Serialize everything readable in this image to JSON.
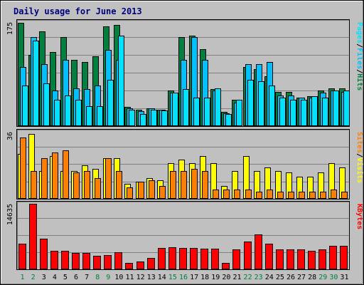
{
  "title": "Daily usage for June 2013",
  "colors": {
    "hits": "#008040",
    "files": "#00c0ff",
    "pages": "#00e0ff",
    "visits": "#ffff00",
    "sites": "#ff8000",
    "kbytes": "#ff0000",
    "weekend": "#008040",
    "weekday": "#000000",
    "background": "#c0c0c0",
    "plot": "#c0c0c0",
    "grid": "#808080",
    "frame": "#000000"
  },
  "panels": {
    "top": {
      "max_label": "175",
      "legend": [
        "Pages",
        "/",
        "Files",
        "/",
        "Hits"
      ]
    },
    "middle": {
      "max_label": "36",
      "legend": [
        "Sites",
        "/",
        "Visits"
      ]
    },
    "bottom": {
      "max_label": "14635",
      "legend": [
        "KBytes"
      ]
    }
  },
  "chart_data": {
    "type": "bar",
    "title": "Daily usage for June 2013",
    "categories": [
      "1",
      "2",
      "3",
      "4",
      "5",
      "6",
      "7",
      "8",
      "9",
      "10",
      "11",
      "12",
      "13",
      "14",
      "15",
      "16",
      "17",
      "18",
      "19",
      "20",
      "21",
      "22",
      "23",
      "24",
      "25",
      "26",
      "27",
      "28",
      "29",
      "30",
      "31"
    ],
    "weekend_days": [
      "1",
      "2",
      "8",
      "9",
      "15",
      "16",
      "22",
      "23",
      "29",
      "30"
    ],
    "grid": true,
    "panels": [
      {
        "name": "hits-files-pages",
        "ylim": [
          0,
          175
        ],
        "series": [
          {
            "name": "Hits",
            "values": [
              174,
              120,
              160,
              125,
              150,
              112,
              108,
              118,
              168,
              170,
              32,
              28,
              30,
              28,
              60,
              150,
              152,
              130,
              62,
              24,
              44,
              100,
              96,
              84,
              58,
              58,
              48,
              50,
              60,
              64,
              64
            ]
          },
          {
            "name": "Files",
            "values": [
              100,
              150,
              104,
              60,
              112,
              64,
              62,
              68,
              128,
              112,
              30,
              25,
              30,
              28,
              56,
              112,
              150,
              112,
              60,
              22,
              40,
              104,
              104,
              108,
              52,
              52,
              48,
              48,
              56,
              60,
              58
            ]
          },
          {
            "name": "Pages",
            "values": [
              68,
              144,
              72,
              44,
              52,
              44,
              34,
              34,
              78,
              152,
              28,
              20,
              28,
              26,
              56,
              62,
              48,
              48,
              64,
              20,
              44,
              78,
              76,
              68,
              48,
              44,
              44,
              50,
              48,
              60,
              60
            ]
          }
        ]
      },
      {
        "name": "sites-visits",
        "ylim": [
          0,
          36
        ],
        "series": [
          {
            "name": "Visits",
            "values": [
              24,
              35,
              15,
              23,
              15,
              15,
              18,
              16,
              22,
              22,
              8,
              9,
              11,
              10,
              19,
              21,
              19,
              23,
              19,
              7,
              15,
              23,
              15,
              17,
              15,
              14,
              12,
              12,
              14,
              19,
              17
            ]
          },
          {
            "name": "Sites",
            "values": [
              33,
              15,
              22,
              25,
              26,
              14,
              15,
              11,
              22,
              15,
              6,
              9,
              10,
              7,
              15,
              15,
              16,
              15,
              5,
              5,
              5,
              5,
              4,
              5,
              4,
              4,
              4,
              4,
              4,
              5,
              4
            ]
          }
        ]
      },
      {
        "name": "kbytes",
        "ylim": [
          0,
          14635
        ],
        "series": [
          {
            "name": "KBytes",
            "values": [
              5800,
              14600,
              6900,
              4200,
              4100,
              3600,
              3600,
              3100,
              3200,
              3800,
              1400,
              1800,
              2600,
              4800,
              5000,
              4800,
              4800,
              4600,
              4600,
              1400,
              4500,
              6200,
              7800,
              5800,
              4400,
              4400,
              4400,
              4200,
              4400,
              5300,
              5300
            ]
          }
        ]
      }
    ]
  }
}
